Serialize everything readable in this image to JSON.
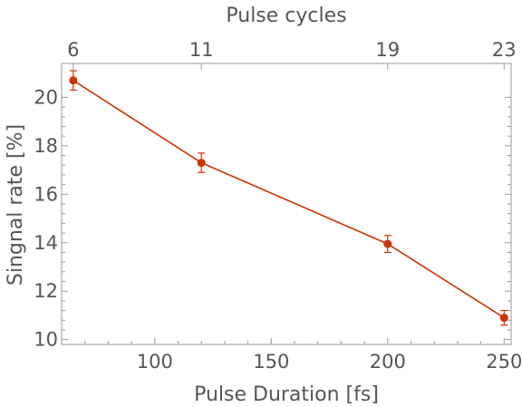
{
  "chart_data": {
    "type": "line",
    "title": "",
    "xlabel": "Pulse Duration [fs]",
    "ylabel": "Singnal rate [%]",
    "x2label": "Pulse cycles",
    "xlim": [
      60,
      253
    ],
    "ylim": [
      9.8,
      21.4
    ],
    "x_ticks": [
      100,
      150,
      200,
      250
    ],
    "y_ticks": [
      10,
      12,
      14,
      16,
      18,
      20
    ],
    "x2_ticks": [
      {
        "label": "6",
        "x": 65
      },
      {
        "label": "11",
        "x": 120
      },
      {
        "label": "19",
        "x": 200
      },
      {
        "label": "23",
        "x": 250
      }
    ],
    "grid": false,
    "legend": "none",
    "series": [
      {
        "x": [
          65,
          120,
          200,
          250
        ],
        "y": [
          20.7,
          17.3,
          13.95,
          10.9
        ],
        "yerr": [
          0.4,
          0.4,
          0.35,
          0.3
        ],
        "color": "#cc3300"
      }
    ]
  }
}
